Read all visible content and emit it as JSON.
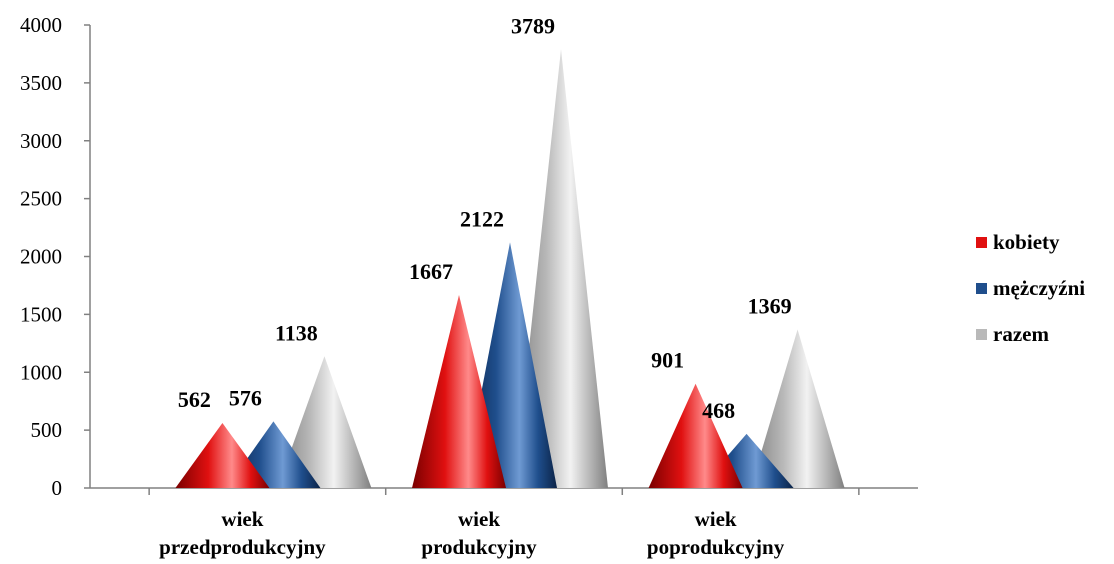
{
  "chart_data": {
    "type": "bar",
    "bar_shape": "cone",
    "categories": [
      [
        "wiek",
        "przedprodukcyjny"
      ],
      [
        "wiek",
        "produkcyjny"
      ],
      [
        "wiek",
        "poprodukcyjny"
      ]
    ],
    "series": [
      {
        "name": "kobiety",
        "values": [
          562,
          1667,
          901
        ],
        "color": "#e01010",
        "dark": "#7a0000",
        "light": "#ff8a8a"
      },
      {
        "name": "mężczyźni",
        "values": [
          576,
          2122,
          468
        ],
        "color": "#1f4e8c",
        "dark": "#0b2347",
        "light": "#6f9ad3"
      },
      {
        "name": "razem",
        "values": [
          1138,
          3789,
          1369
        ],
        "color": "#b9b9b9",
        "dark": "#7f7f7f",
        "light": "#f2f2f2"
      }
    ],
    "ylim": [
      0,
      4000
    ],
    "yticks": [
      0,
      500,
      1000,
      1500,
      2000,
      2500,
      3000,
      3500,
      4000
    ],
    "legend_position": "right",
    "grid": false,
    "data_labels": true
  }
}
